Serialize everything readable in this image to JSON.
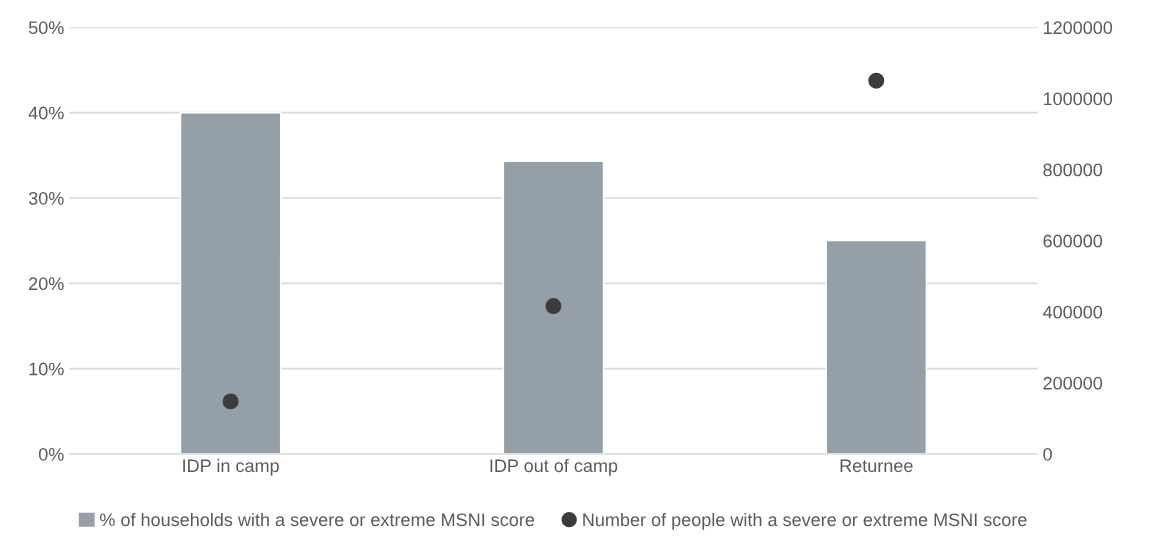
{
  "chart_data": {
    "type": "bar",
    "categories": [
      "IDP in camp",
      "IDP out of camp",
      "Returnee"
    ],
    "series": [
      {
        "name": "% of households with a severe or extreme MSNI score",
        "color": "#959fa7",
        "values": [
          40,
          34.3,
          25
        ]
      },
      {
        "name": "Number of people with a severe or extreme MSNI score",
        "type": "scatter",
        "axis": "y2",
        "color": "#3c3c3b",
        "marker": "circle",
        "values": [
          148000,
          416000,
          1050000
        ]
      }
    ],
    "ylim": [
      0,
      50
    ],
    "yticks": [
      {
        "value": 0,
        "label": "0%"
      },
      {
        "value": 10,
        "label": "10%"
      },
      {
        "value": 20,
        "label": "20%"
      },
      {
        "value": 30,
        "label": "30%"
      },
      {
        "value": 40,
        "label": "40%"
      },
      {
        "value": 50,
        "label": "50%"
      }
    ],
    "y2lim": [
      0,
      1200000
    ],
    "y2ticks": [
      0,
      200000,
      400000,
      600000,
      800000,
      1000000,
      1200000
    ],
    "grid": "y",
    "legend": "bottom"
  }
}
